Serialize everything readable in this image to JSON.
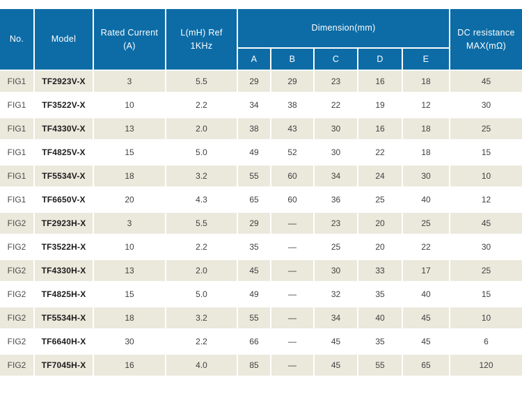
{
  "colors": {
    "header_bg": "#0d6ca6",
    "row_alt_bg": "#ebe8dc",
    "header_text": "#ffffff",
    "body_text": "#3f3f3f"
  },
  "table": {
    "header": {
      "no": "No.",
      "model": "Model",
      "rated_line1": "Rated Current",
      "rated_line2": "(A)",
      "l_line1": "L(mH) Ref",
      "l_line2": "1KHz",
      "dimension": "Dimension(mm)",
      "dim_cols": [
        "A",
        "B",
        "C",
        "D",
        "E"
      ],
      "dc_line1": "DC resistance",
      "dc_line2": "MAX(mΩ)"
    },
    "rows": [
      {
        "no": "FIG1",
        "model": "TF2923V-X",
        "current": "3",
        "l": "5.5",
        "a": "29",
        "b": "29",
        "c": "23",
        "d": "16",
        "e": "18",
        "dc": "45"
      },
      {
        "no": "FIG1",
        "model": "TF3522V-X",
        "current": "10",
        "l": "2.2",
        "a": "34",
        "b": "38",
        "c": "22",
        "d": "19",
        "e": "12",
        "dc": "30"
      },
      {
        "no": "FIG1",
        "model": "TF4330V-X",
        "current": "13",
        "l": "2.0",
        "a": "38",
        "b": "43",
        "c": "30",
        "d": "16",
        "e": "18",
        "dc": "25"
      },
      {
        "no": "FIG1",
        "model": "TF4825V-X",
        "current": "15",
        "l": "5.0",
        "a": "49",
        "b": "52",
        "c": "30",
        "d": "22",
        "e": "18",
        "dc": "15"
      },
      {
        "no": "FIG1",
        "model": "TF5534V-X",
        "current": "18",
        "l": "3.2",
        "a": "55",
        "b": "60",
        "c": "34",
        "d": "24",
        "e": "30",
        "dc": "10"
      },
      {
        "no": "FIG1",
        "model": "TF6650V-X",
        "current": "20",
        "l": "4.3",
        "a": "65",
        "b": "60",
        "c": "36",
        "d": "25",
        "e": "40",
        "dc": "12"
      },
      {
        "no": "FIG2",
        "model": "TF2923H-X",
        "current": "3",
        "l": "5.5",
        "a": "29",
        "b": "—",
        "c": "23",
        "d": "20",
        "e": "25",
        "dc": "45"
      },
      {
        "no": "FIG2",
        "model": "TF3522H-X",
        "current": "10",
        "l": "2.2",
        "a": "35",
        "b": "—",
        "c": "25",
        "d": "20",
        "e": "22",
        "dc": "30"
      },
      {
        "no": "FIG2",
        "model": "TF4330H-X",
        "current": "13",
        "l": "2.0",
        "a": "45",
        "b": "—",
        "c": "30",
        "d": "33",
        "e": "17",
        "dc": "25"
      },
      {
        "no": "FIG2",
        "model": "TF4825H-X",
        "current": "15",
        "l": "5.0",
        "a": "49",
        "b": "—",
        "c": "32",
        "d": "35",
        "e": "40",
        "dc": "15"
      },
      {
        "no": "FIG2",
        "model": "TF5534H-X",
        "current": "18",
        "l": "3.2",
        "a": "55",
        "b": "—",
        "c": "34",
        "d": "40",
        "e": "45",
        "dc": "10"
      },
      {
        "no": "FIG2",
        "model": "TF6640H-X",
        "current": "30",
        "l": "2.2",
        "a": "66",
        "b": "—",
        "c": "45",
        "d": "35",
        "e": "45",
        "dc": "6"
      },
      {
        "no": "FIG2",
        "model": "TF7045H-X",
        "current": "16",
        "l": "4.0",
        "a": "85",
        "b": "—",
        "c": "45",
        "d": "55",
        "e": "65",
        "dc": "120"
      }
    ]
  }
}
